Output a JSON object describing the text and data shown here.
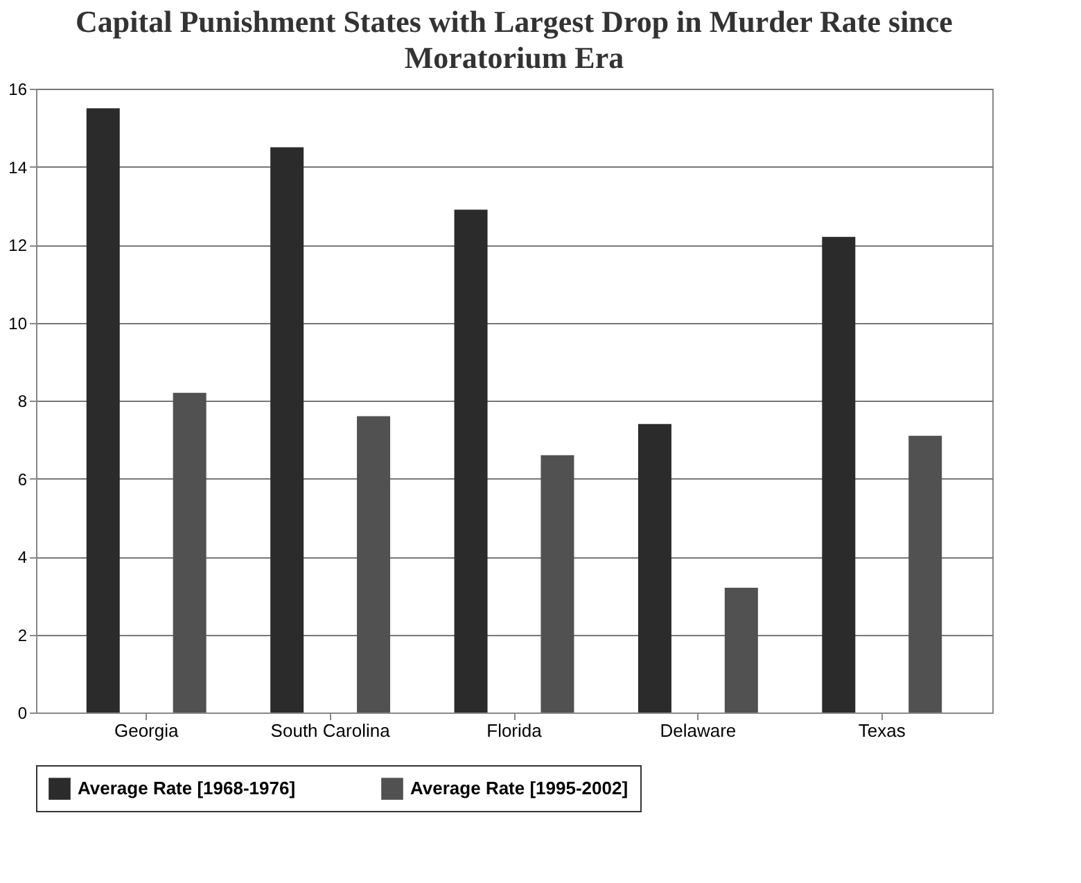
{
  "chart_data": {
    "type": "bar",
    "title": "Capital Punishment States with Largest Drop in Murder Rate since Moratorium Era",
    "categories": [
      "Georgia",
      "South Carolina",
      "Florida",
      "Delaware",
      "Texas"
    ],
    "series": [
      {
        "name": "Average Rate [1968-1976]",
        "color": "#2b2b2b",
        "values": [
          15.5,
          14.5,
          12.9,
          7.4,
          12.2
        ]
      },
      {
        "name": "Average Rate [1995-2002]",
        "color": "#515151",
        "values": [
          8.2,
          7.6,
          6.6,
          3.2,
          7.1
        ]
      }
    ],
    "ylim": [
      0,
      16
    ],
    "yticks": [
      0,
      2,
      4,
      6,
      8,
      10,
      12,
      14,
      16
    ],
    "grid": "y",
    "legend": "bottom"
  }
}
